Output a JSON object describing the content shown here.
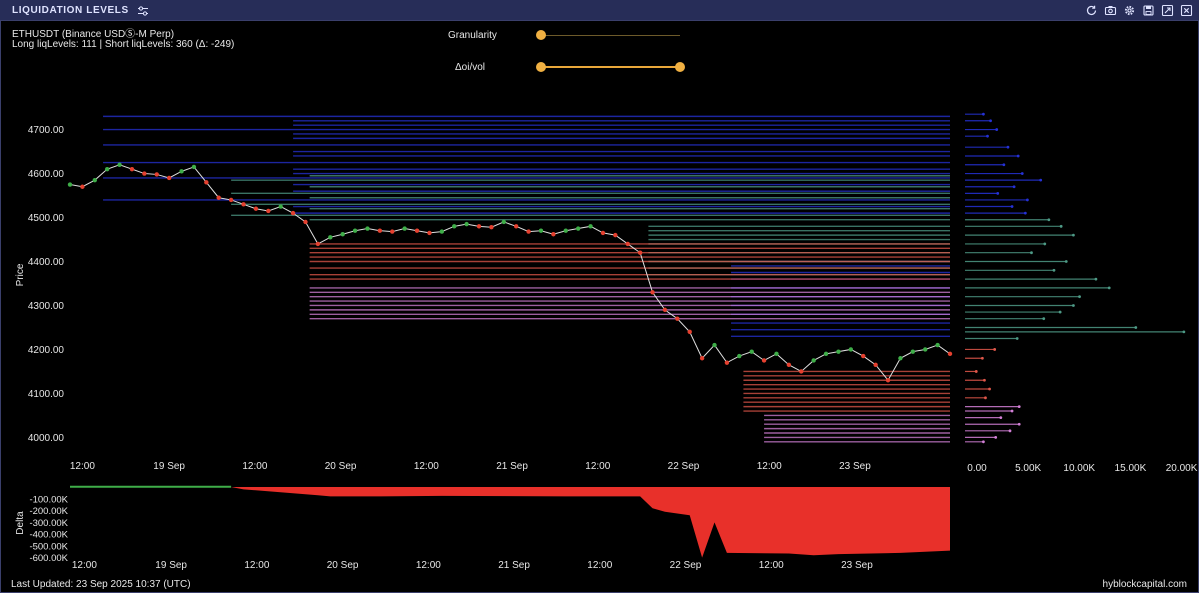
{
  "window": {
    "title": "LIQUIDATION LEVELS",
    "icons": [
      "sliders-icon",
      "refresh-icon",
      "camera-icon",
      "gear-icon",
      "save-icon",
      "expand-icon",
      "close-icon"
    ]
  },
  "info": {
    "symbol": "ETHUSDT (Binance USDⓈ-M Perp)",
    "levels": "Long liqLevels: 111 | Short liqLevels: 360 (Δ: -249)"
  },
  "controls": {
    "granularity_label": "Granularity",
    "granularity_value": 0.0,
    "oi_vol_label": "Δoi/vol",
    "oi_vol_range": [
      0.0,
      1.0
    ]
  },
  "footer": {
    "last_updated": "Last Updated: 23 Sep 2025 10:37 (UTC)",
    "brand": "hyblockcapital.com"
  },
  "colors": {
    "up": "#3fae49",
    "down": "#e5402f",
    "short_levels": "#2531d6",
    "short_teal": "#4d9a86",
    "long_red": "#e0574a",
    "long_pink": "#d27fd6",
    "delta": "#e8302a",
    "accent": "#f0b042"
  },
  "chart_data": [
    {
      "type": "line",
      "ylabel": "Price",
      "ylim": [
        3960,
        4790
      ],
      "yticks": [
        "4700.00",
        "4600.00",
        "4500.00",
        "4400.00",
        "4300.00",
        "4200.00",
        "4100.00",
        "4000.00"
      ],
      "xticks": [
        "12:00",
        "19 Sep",
        "12:00",
        "20 Sep",
        "12:00",
        "21 Sep",
        "12:00",
        "22 Sep",
        "12:00",
        "23 Sep"
      ],
      "series": [
        {
          "values": [
            [
              0.0,
              4575
            ],
            [
              0.3,
              4570
            ],
            [
              0.6,
              4585
            ],
            [
              0.9,
              4610
            ],
            [
              1.2,
              4620
            ],
            [
              1.5,
              4610
            ],
            [
              1.8,
              4600
            ],
            [
              2.1,
              4598
            ],
            [
              2.4,
              4590
            ],
            [
              2.7,
              4605
            ],
            [
              3.0,
              4615
            ],
            [
              3.3,
              4580
            ],
            [
              3.6,
              4545
            ],
            [
              3.9,
              4540
            ],
            [
              4.2,
              4530
            ],
            [
              4.5,
              4520
            ],
            [
              4.8,
              4515
            ],
            [
              5.1,
              4525
            ],
            [
              5.4,
              4510
            ],
            [
              5.7,
              4490
            ],
            [
              6.0,
              4440
            ],
            [
              6.3,
              4455
            ],
            [
              6.6,
              4462
            ],
            [
              6.9,
              4470
            ],
            [
              7.2,
              4475
            ],
            [
              7.5,
              4470
            ],
            [
              7.8,
              4468
            ],
            [
              8.1,
              4475
            ],
            [
              8.4,
              4470
            ],
            [
              8.7,
              4465
            ],
            [
              9.0,
              4468
            ],
            [
              9.3,
              4480
            ],
            [
              9.6,
              4485
            ],
            [
              9.9,
              4480
            ],
            [
              10.2,
              4478
            ],
            [
              10.5,
              4490
            ],
            [
              10.8,
              4480
            ],
            [
              11.1,
              4468
            ],
            [
              11.4,
              4470
            ],
            [
              11.7,
              4462
            ],
            [
              12.0,
              4470
            ],
            [
              12.3,
              4475
            ],
            [
              12.6,
              4480
            ],
            [
              12.9,
              4465
            ],
            [
              13.2,
              4460
            ],
            [
              13.5,
              4440
            ],
            [
              13.8,
              4420
            ],
            [
              14.1,
              4330
            ],
            [
              14.4,
              4290
            ],
            [
              14.7,
              4270
            ],
            [
              15.0,
              4240
            ],
            [
              15.3,
              4180
            ],
            [
              15.6,
              4210
            ],
            [
              15.9,
              4170
            ],
            [
              16.2,
              4185
            ],
            [
              16.5,
              4195
            ],
            [
              16.8,
              4175
            ],
            [
              17.1,
              4190
            ],
            [
              17.4,
              4165
            ],
            [
              17.7,
              4150
            ],
            [
              18.0,
              4175
            ],
            [
              18.3,
              4190
            ],
            [
              18.6,
              4195
            ],
            [
              18.9,
              4200
            ],
            [
              19.2,
              4185
            ],
            [
              19.5,
              4165
            ],
            [
              19.8,
              4130
            ],
            [
              20.1,
              4180
            ],
            [
              20.4,
              4195
            ],
            [
              20.7,
              4200
            ],
            [
              21.0,
              4210
            ],
            [
              21.3,
              4190
            ]
          ]
        }
      ],
      "liquidation_levels": {
        "short_blue": [
          4730,
          4720,
          4710,
          4700,
          4690,
          4680,
          4665,
          4650,
          4640,
          4625,
          4610,
          4600,
          4590,
          4575,
          4560,
          4540,
          4525,
          4510,
          4400,
          4390,
          4375,
          4360,
          4340,
          4320,
          4300,
          4280,
          4260,
          4245,
          4230
        ],
        "short_teal": [
          4595,
          4585,
          4570,
          4555,
          4545,
          4530,
          4520,
          4505,
          4495,
          4480,
          4470,
          4460,
          4450,
          4440,
          4420,
          4400,
          4385,
          4370
        ],
        "long_red": [
          4440,
          4430,
          4420,
          4410,
          4400,
          4385,
          4370,
          4360,
          4150,
          4140,
          4130,
          4120,
          4110,
          4100,
          4090,
          4080,
          4070,
          4060
        ],
        "long_pink": [
          4340,
          4330,
          4320,
          4310,
          4300,
          4290,
          4280,
          4270,
          4050,
          4040,
          4030,
          4020,
          4010,
          4000,
          3990
        ]
      }
    },
    {
      "type": "bar",
      "xticks": [
        "0.00",
        "5.00K",
        "10.00K",
        "15.00K",
        "20.00K"
      ],
      "xlim": [
        0,
        22000
      ],
      "levels": [
        [
          4735,
          1800
        ],
        [
          4720,
          2500
        ],
        [
          4700,
          3100
        ],
        [
          4685,
          2200
        ],
        [
          4660,
          4200
        ],
        [
          4640,
          5200
        ],
        [
          4620,
          3800
        ],
        [
          4600,
          5600
        ],
        [
          4585,
          7400
        ],
        [
          4570,
          4800
        ],
        [
          4555,
          3200
        ],
        [
          4540,
          6100
        ],
        [
          4525,
          4600
        ],
        [
          4510,
          5900
        ],
        [
          4495,
          8200
        ],
        [
          4480,
          9400
        ],
        [
          4460,
          10600
        ],
        [
          4440,
          7800
        ],
        [
          4420,
          6500
        ],
        [
          4400,
          9900
        ],
        [
          4380,
          8700
        ],
        [
          4360,
          12800
        ],
        [
          4340,
          14100
        ],
        [
          4320,
          11200
        ],
        [
          4300,
          10600
        ],
        [
          4285,
          9300
        ],
        [
          4270,
          7700
        ],
        [
          4250,
          16700
        ],
        [
          4240,
          21400
        ],
        [
          4225,
          5100
        ],
        [
          4200,
          2900
        ],
        [
          4180,
          1700
        ],
        [
          4150,
          1100
        ],
        [
          4130,
          1900
        ],
        [
          4110,
          2400
        ],
        [
          4090,
          2000
        ],
        [
          4070,
          5300
        ],
        [
          4060,
          4600
        ],
        [
          4045,
          3500
        ],
        [
          4030,
          5300
        ],
        [
          4015,
          4400
        ],
        [
          4000,
          3000
        ],
        [
          3990,
          1800
        ]
      ]
    },
    {
      "type": "area",
      "ylabel": "Delta",
      "ylim": [
        -620000,
        0
      ],
      "yticks": [
        "-100.00K",
        "-200.00K",
        "-300.00K",
        "-400.00K",
        "-500.00K",
        "-600.00K"
      ],
      "xticks": [
        "12:00",
        "19 Sep",
        "12:00",
        "20 Sep",
        "12:00",
        "21 Sep",
        "12:00",
        "22 Sep",
        "12:00",
        "23 Sep"
      ],
      "values": [
        [
          0.0,
          2000
        ],
        [
          3.9,
          2000
        ],
        [
          4.2,
          -20000
        ],
        [
          6.0,
          -70000
        ],
        [
          6.3,
          -80000
        ],
        [
          7.5,
          -80000
        ],
        [
          9.0,
          -75000
        ],
        [
          12.0,
          -80000
        ],
        [
          13.8,
          -80000
        ],
        [
          14.1,
          -180000
        ],
        [
          14.4,
          -210000
        ],
        [
          15.0,
          -240000
        ],
        [
          15.3,
          -600000
        ],
        [
          15.6,
          -300000
        ],
        [
          15.9,
          -560000
        ],
        [
          17.4,
          -565000
        ],
        [
          18.0,
          -580000
        ],
        [
          18.6,
          -570000
        ],
        [
          20.1,
          -560000
        ],
        [
          21.3,
          -540000
        ]
      ]
    }
  ]
}
